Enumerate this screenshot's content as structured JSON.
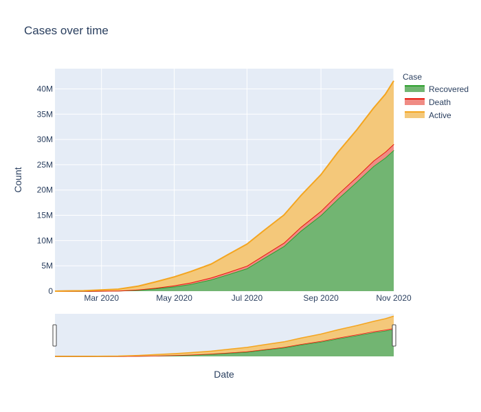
{
  "chart_data": {
    "type": "area",
    "title": "Cases over time",
    "xlabel": "Date",
    "ylabel": "Count",
    "x_range": [
      "2020-01-22",
      "2020-11-01"
    ],
    "ylim": [
      0,
      44000000
    ],
    "x_ticks": [
      {
        "date": "2020-03-01",
        "label": "Mar 2020"
      },
      {
        "date": "2020-05-01",
        "label": "May 2020"
      },
      {
        "date": "2020-07-01",
        "label": "Jul 2020"
      },
      {
        "date": "2020-09-01",
        "label": "Sep 2020"
      },
      {
        "date": "2020-11-01",
        "label": "Nov 2020"
      }
    ],
    "y_ticks": [
      {
        "value": 0,
        "label": "0"
      },
      {
        "value": 5000000,
        "label": "5M"
      },
      {
        "value": 10000000,
        "label": "10M"
      },
      {
        "value": 15000000,
        "label": "15M"
      },
      {
        "value": 20000000,
        "label": "20M"
      },
      {
        "value": 25000000,
        "label": "25M"
      },
      {
        "value": 30000000,
        "label": "30M"
      },
      {
        "value": 35000000,
        "label": "35M"
      },
      {
        "value": 40000000,
        "label": "40M"
      }
    ],
    "stacked": true,
    "grid": true,
    "legend": {
      "title": "Case",
      "position": "top-right"
    },
    "rangeslider": true,
    "x": [
      "2020-01-22",
      "2020-02-15",
      "2020-03-15",
      "2020-04-01",
      "2020-04-15",
      "2020-05-01",
      "2020-05-15",
      "2020-06-01",
      "2020-06-15",
      "2020-07-01",
      "2020-07-15",
      "2020-08-01",
      "2020-08-15",
      "2020-09-01",
      "2020-09-15",
      "2020-10-01",
      "2020-10-15",
      "2020-10-25",
      "2020-11-01"
    ],
    "series": [
      {
        "name": "Recovered",
        "color": "#2ca02c",
        "fill": "#72b572",
        "values": [
          0,
          20000,
          80000,
          250000,
          500000,
          900000,
          1400000,
          2300000,
          3300000,
          4500000,
          6500000,
          8900000,
          11900000,
          15000000,
          18200000,
          21600000,
          24700000,
          26400000,
          27900000
        ]
      },
      {
        "name": "Death",
        "color": "#e8160c",
        "fill": "#f08b84",
        "values": [
          0,
          1500,
          8000,
          50000,
          120000,
          230000,
          300000,
          370000,
          430000,
          510000,
          570000,
          680000,
          760000,
          850000,
          920000,
          1000000,
          1090000,
          1150000,
          1190000
        ]
      },
      {
        "name": "Active",
        "color": "#f4a51f",
        "fill": "#f4c87a",
        "values": [
          0,
          60000,
          300000,
          700000,
          1200000,
          1700000,
          2200000,
          2700000,
          3500000,
          4300000,
          4900000,
          5500000,
          6200000,
          7200000,
          8300000,
          9300000,
          10400000,
          11400000,
          12500000
        ]
      }
    ]
  }
}
